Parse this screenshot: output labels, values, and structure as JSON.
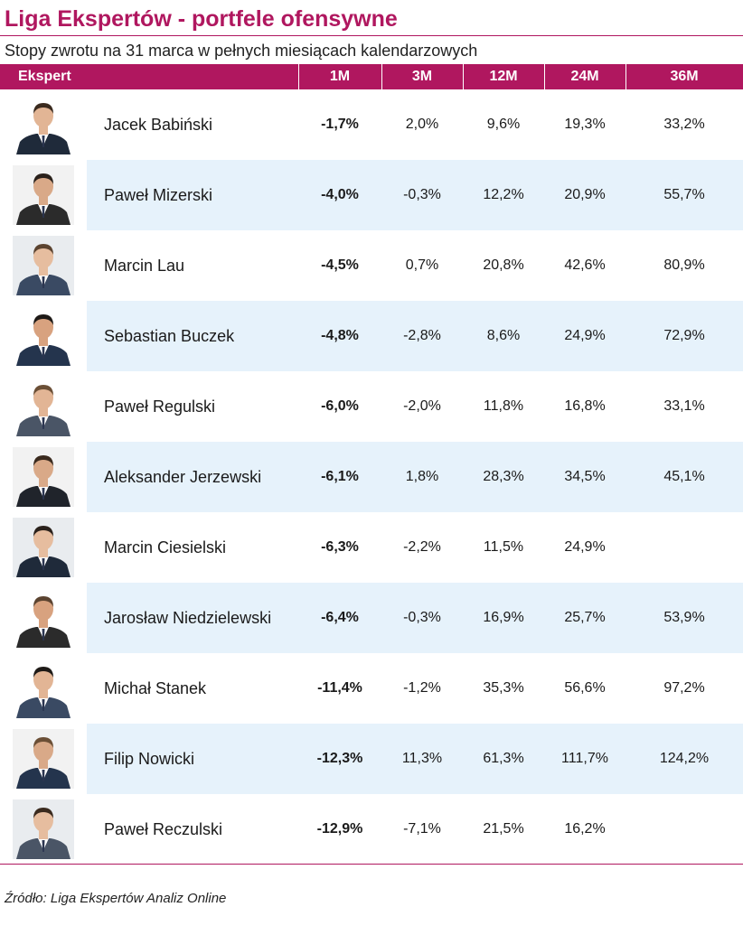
{
  "title": "Liga Ekspertów - portfele ofensywne",
  "subtitle": "Stopy zwrotu na 31 marca w pełnych miesiącach kalendarzowych",
  "source": "Źródło: Liga Ekspertów Analiz Online",
  "colors": {
    "accent": "#b0175f",
    "row_alt": "#e6f2fb"
  },
  "chart_data": {
    "type": "table",
    "columns": [
      "Ekspert",
      "1M",
      "3M",
      "12M",
      "24M",
      "36M"
    ],
    "rows": [
      [
        "Jacek Babiński",
        "-1,7%",
        "2,0%",
        "9,6%",
        "19,3%",
        "33,2%"
      ],
      [
        "Paweł Mizerski",
        "-4,0%",
        "-0,3%",
        "12,2%",
        "20,9%",
        "55,7%"
      ],
      [
        "Marcin Lau",
        "-4,5%",
        "0,7%",
        "20,8%",
        "42,6%",
        "80,9%"
      ],
      [
        "Sebastian Buczek",
        "-4,8%",
        "-2,8%",
        "8,6%",
        "24,9%",
        "72,9%"
      ],
      [
        "Paweł Regulski",
        "-6,0%",
        "-2,0%",
        "11,8%",
        "16,8%",
        "33,1%"
      ],
      [
        "Aleksander Jerzewski",
        "-6,1%",
        "1,8%",
        "28,3%",
        "34,5%",
        "45,1%"
      ],
      [
        "Marcin Ciesielski",
        "-6,3%",
        "-2,2%",
        "11,5%",
        "24,9%",
        ""
      ],
      [
        "Jarosław Niedzielewski",
        "-6,4%",
        "-0,3%",
        "16,9%",
        "25,7%",
        "53,9%"
      ],
      [
        "Michał Stanek",
        "-11,4%",
        "-1,2%",
        "35,3%",
        "56,6%",
        "97,2%"
      ],
      [
        "Filip Nowicki",
        "-12,3%",
        "11,3%",
        "61,3%",
        "111,7%",
        "124,2%"
      ],
      [
        "Paweł Reczulski",
        "-12,9%",
        "-7,1%",
        "21,5%",
        "16,2%",
        ""
      ]
    ]
  }
}
